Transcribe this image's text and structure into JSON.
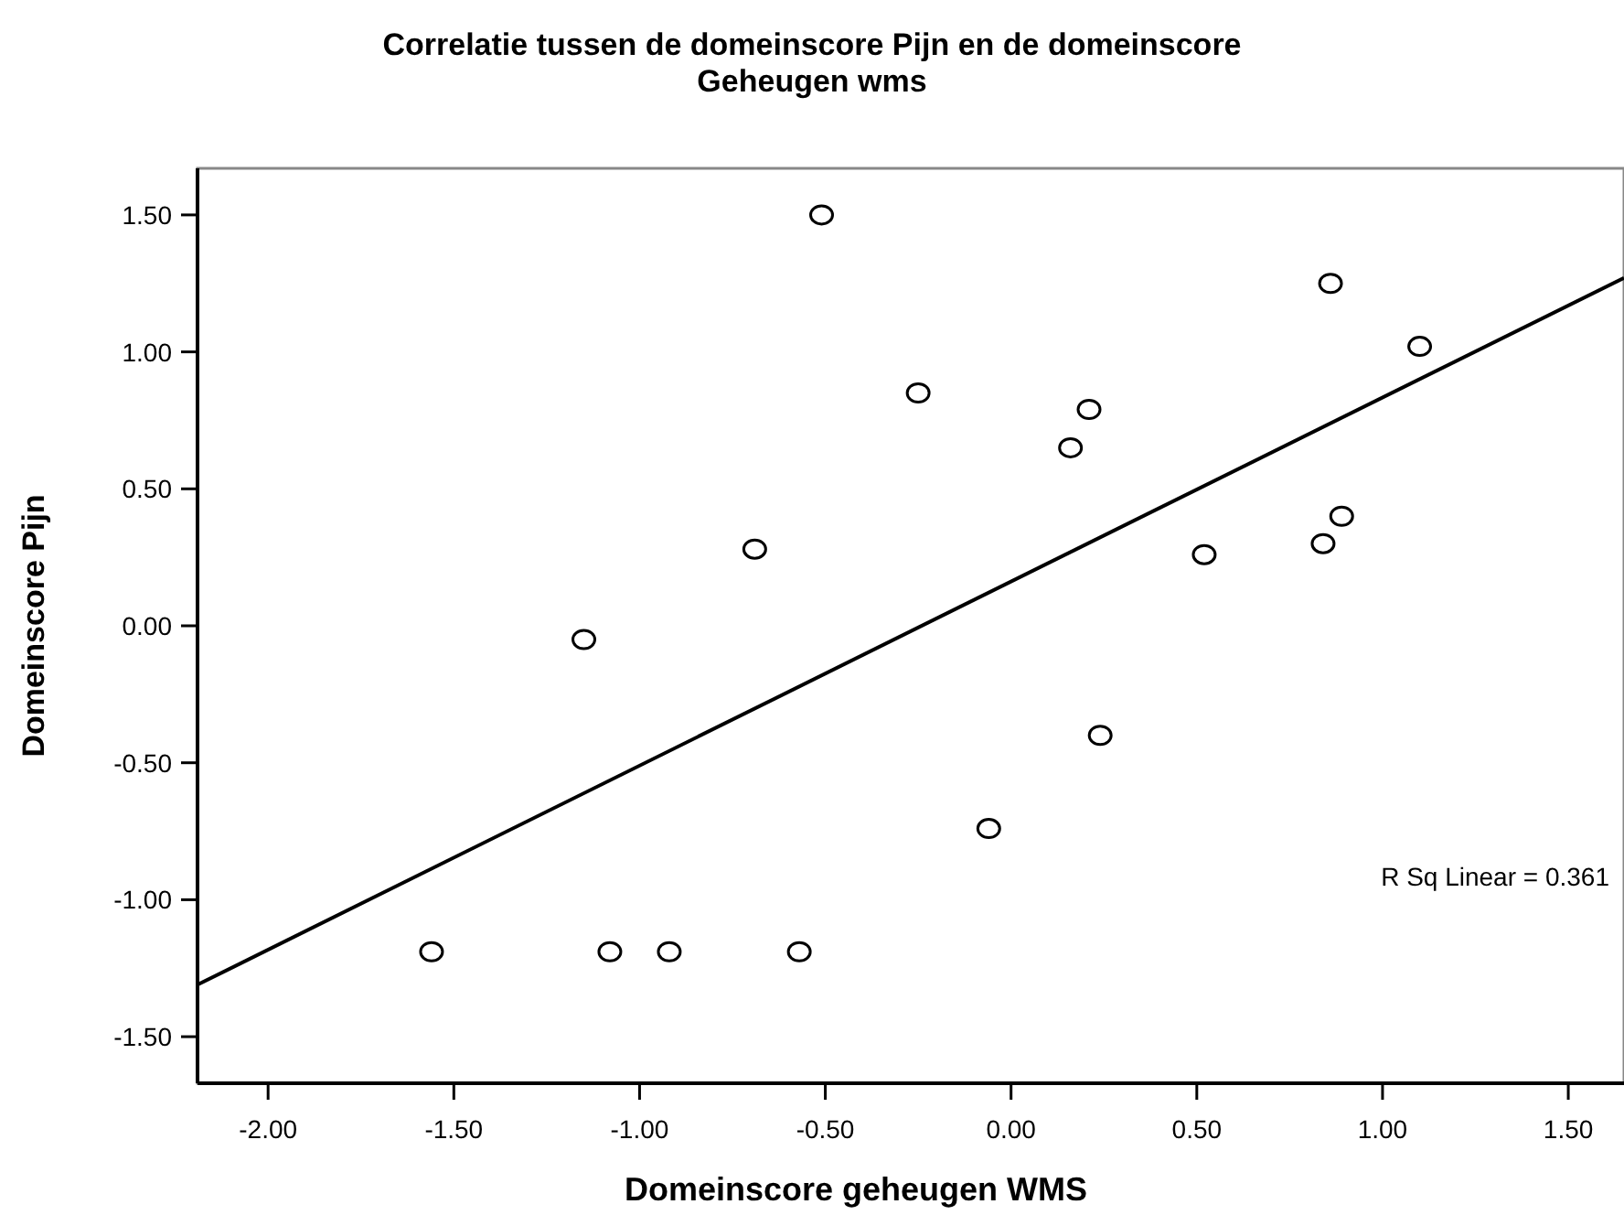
{
  "chart_data": {
    "type": "scatter",
    "title": "Correlatie tussen de domeinscore Pijn en de domeinscore\nGeheugen wms",
    "xlabel": "Domeinscore geheugen WMS",
    "ylabel": "Domeinscore Pijn",
    "annotations": [
      "R Sq Linear = 0.361"
    ],
    "xlim": [
      -2.19,
      1.65
    ],
    "ylim": [
      -1.67,
      1.67
    ],
    "xticks": [
      {
        "value": -2,
        "label": "-2.00"
      },
      {
        "value": -1.5,
        "label": "-1.50"
      },
      {
        "value": -1,
        "label": "-1.00"
      },
      {
        "value": -0.5,
        "label": "-0.50"
      },
      {
        "value": 0,
        "label": "0.00"
      },
      {
        "value": 0.5,
        "label": "0.50"
      },
      {
        "value": 1,
        "label": "1.00"
      },
      {
        "value": 1.5,
        "label": "1.50"
      }
    ],
    "yticks": [
      {
        "value": -1.5,
        "label": "-1.50"
      },
      {
        "value": -1,
        "label": "-1.00"
      },
      {
        "value": -0.5,
        "label": "-0.50"
      },
      {
        "value": 0,
        "label": "0.00"
      },
      {
        "value": 0.5,
        "label": "0.50"
      },
      {
        "value": 1,
        "label": "1.00"
      },
      {
        "value": 1.5,
        "label": "1.50"
      }
    ],
    "grid": false,
    "series": [
      {
        "marker": "circle",
        "color": "#000000",
        "x": [
          -0.51,
          -0.69,
          -1.15,
          -0.25,
          0.21,
          0.16,
          0.86,
          1.1,
          0.52,
          0.89,
          0.84,
          0.24,
          -0.06,
          -1.56,
          -1.08,
          -0.92,
          -0.57
        ],
        "values": [
          1.5,
          0.28,
          -0.05,
          0.85,
          0.79,
          0.65,
          1.25,
          1.02,
          0.26,
          0.4,
          0.3,
          -0.4,
          -0.74,
          -1.19,
          -1.19,
          -1.19,
          -1.19
        ]
      },
      {
        "type": "line",
        "color": "#000000",
        "line_style": "solid",
        "x": [
          -2.19,
          1.65
        ],
        "values": [
          -1.31,
          1.27
        ]
      }
    ]
  }
}
